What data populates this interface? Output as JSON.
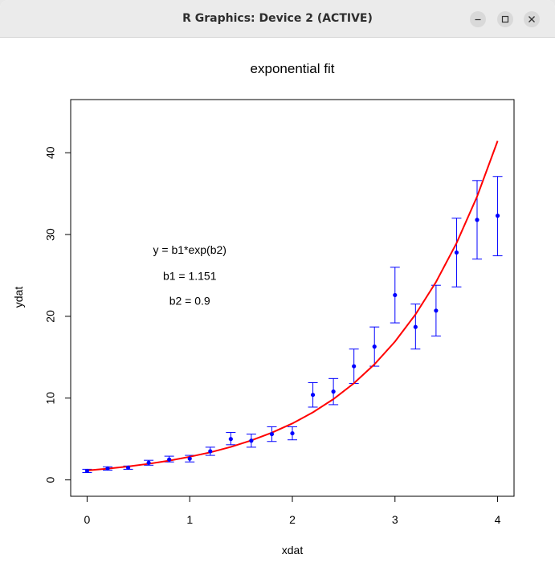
{
  "window": {
    "title": "R Graphics: Device 2 (ACTIVE)",
    "controls": {
      "minimize_icon": "minimize-icon",
      "maximize_icon": "maximize-icon",
      "close_icon": "close-icon"
    }
  },
  "chart_data": {
    "type": "scatter",
    "title": "exponential fit",
    "xlabel": "xdat",
    "ylabel": "ydat",
    "xlim": [
      -0.16,
      4.16
    ],
    "ylim": [
      -2,
      46.5
    ],
    "xticks": [
      0,
      1,
      2,
      3,
      4
    ],
    "yticks": [
      0,
      10,
      20,
      30,
      40
    ],
    "xtick_labels": [
      "0",
      "1",
      "2",
      "3",
      "4"
    ],
    "ytick_labels": [
      "0",
      "10",
      "20",
      "30",
      "40"
    ],
    "grid": false,
    "colors": {
      "points": "#0000ff",
      "error_bars": "#0000ff",
      "fit_line": "#ff0000"
    },
    "series": [
      {
        "kind": "points_with_error_bars",
        "x": [
          0,
          0.2,
          0.4,
          0.6,
          0.8,
          1.0,
          1.2,
          1.4,
          1.6,
          1.8,
          2.0,
          2.2,
          2.4,
          2.6,
          2.8,
          3.0,
          3.2,
          3.4,
          3.6,
          3.8,
          4.0
        ],
        "y": [
          1.1,
          1.4,
          1.5,
          2.1,
          2.5,
          2.6,
          3.5,
          5.0,
          4.8,
          5.6,
          5.7,
          10.4,
          10.8,
          13.9,
          16.3,
          22.6,
          18.7,
          20.7,
          27.8,
          31.8,
          32.3
        ],
        "err_low": [
          0.9,
          1.2,
          1.3,
          1.8,
          2.2,
          2.2,
          3.0,
          4.3,
          4.0,
          4.7,
          4.9,
          8.9,
          9.2,
          11.8,
          13.9,
          19.2,
          16.0,
          17.6,
          23.6,
          27.0,
          27.4
        ],
        "err_high": [
          1.3,
          1.6,
          1.7,
          2.4,
          2.9,
          3.0,
          4.0,
          5.8,
          5.6,
          6.5,
          6.5,
          11.9,
          12.4,
          16.0,
          18.7,
          26.0,
          21.5,
          23.8,
          32.0,
          36.6,
          37.1
        ]
      },
      {
        "kind": "line",
        "x": [
          0,
          0.2,
          0.4,
          0.6,
          0.8,
          1.0,
          1.2,
          1.4,
          1.6,
          1.8,
          2.0,
          2.2,
          2.4,
          2.6,
          2.8,
          3.0,
          3.2,
          3.4,
          3.6,
          3.8,
          4.0
        ],
        "y": [
          1.151,
          1.376,
          1.647,
          1.97,
          2.356,
          2.829,
          3.37,
          4.033,
          4.824,
          5.772,
          6.903,
          8.258,
          9.88,
          11.816,
          14.136,
          16.911,
          20.233,
          24.204,
          28.959,
          34.646,
          41.444
        ]
      }
    ],
    "annotations": [
      "y = b1*exp(b2)",
      "b1 =  1.151",
      "b2 =  0.9"
    ],
    "annotation_anchor": {
      "x": 1.0,
      "y": [
        28,
        24.8,
        21.8
      ]
    }
  }
}
